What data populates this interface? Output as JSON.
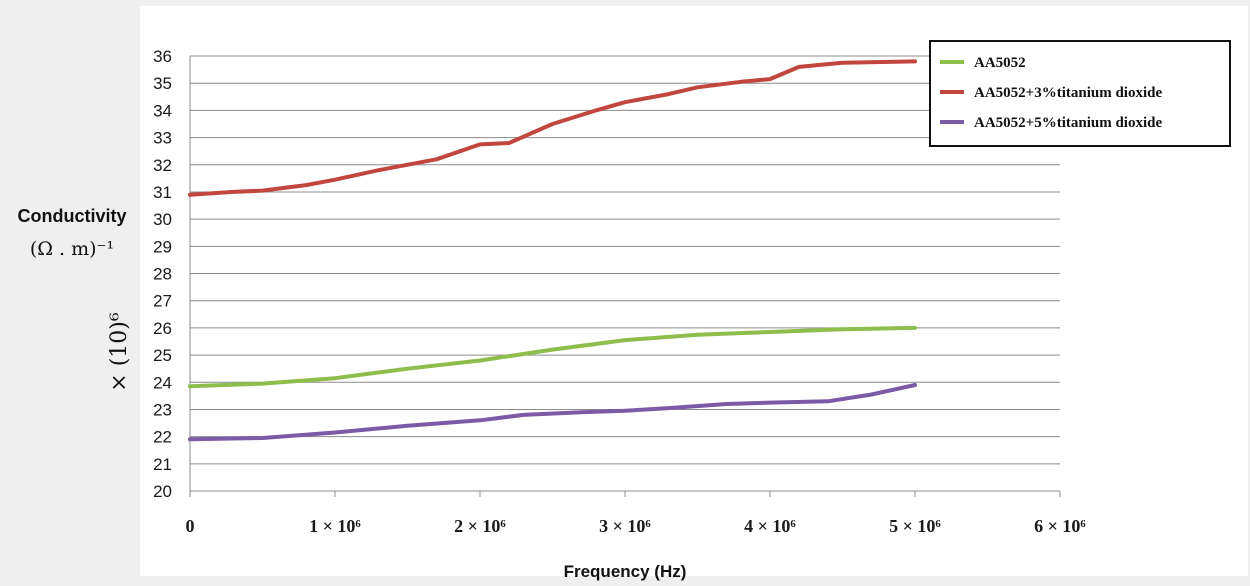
{
  "chart_data": {
    "type": "line",
    "xlabel": "Frequency (Hz)",
    "ylabel": "Conductivity",
    "ylabel_units": "(Ω . m)⁻¹",
    "ylabel_scale": "× (10)⁶",
    "xlim": [
      0,
      6000000
    ],
    "ylim": [
      20,
      36
    ],
    "yticks": [
      20,
      21,
      22,
      23,
      24,
      25,
      26,
      27,
      28,
      29,
      30,
      31,
      32,
      33,
      34,
      35,
      36
    ],
    "xticks": [
      {
        "value": 0,
        "label": "0"
      },
      {
        "value": 1000000,
        "label": "1 × 10⁶"
      },
      {
        "value": 2000000,
        "label": "2 × 10⁶"
      },
      {
        "value": 3000000,
        "label": "3 × 10⁶"
      },
      {
        "value": 4000000,
        "label": "4 × 10⁶"
      },
      {
        "value": 5000000,
        "label": "5 × 10⁶"
      },
      {
        "value": 6000000,
        "label": "6 × 10⁶"
      }
    ],
    "grid": true,
    "legend_position": "top-right",
    "series": [
      {
        "name": "AA5052",
        "color": "#8dbd4a",
        "x": [
          0,
          500000,
          1000000,
          1500000,
          2000000,
          2500000,
          3000000,
          3500000,
          4000000,
          4500000,
          5000000
        ],
        "y": [
          23.85,
          23.95,
          24.15,
          24.5,
          24.8,
          25.2,
          25.55,
          25.75,
          25.85,
          25.95,
          26.0
        ]
      },
      {
        "name": "AA5052+3%titanium dioxide",
        "color": "#c0463e",
        "x": [
          0,
          300000,
          500000,
          800000,
          1000000,
          1300000,
          1700000,
          2000000,
          2200000,
          2500000,
          2800000,
          3000000,
          3300000,
          3500000,
          3800000,
          4000000,
          4200000,
          4500000,
          5000000
        ],
        "y": [
          30.9,
          31.0,
          31.05,
          31.25,
          31.45,
          31.8,
          32.2,
          32.75,
          32.8,
          33.5,
          34.0,
          34.3,
          34.6,
          34.85,
          35.05,
          35.15,
          35.6,
          35.75,
          35.8
        ]
      },
      {
        "name": "AA5052+5%titanium dioxide",
        "color": "#7b5aa6",
        "x": [
          0,
          500000,
          1000000,
          1500000,
          2000000,
          2300000,
          2700000,
          3000000,
          3300000,
          3700000,
          4000000,
          4400000,
          4700000,
          5000000
        ],
        "y": [
          21.9,
          21.95,
          22.15,
          22.4,
          22.6,
          22.8,
          22.9,
          22.95,
          23.05,
          23.2,
          23.25,
          23.3,
          23.55,
          23.9
        ]
      }
    ]
  }
}
